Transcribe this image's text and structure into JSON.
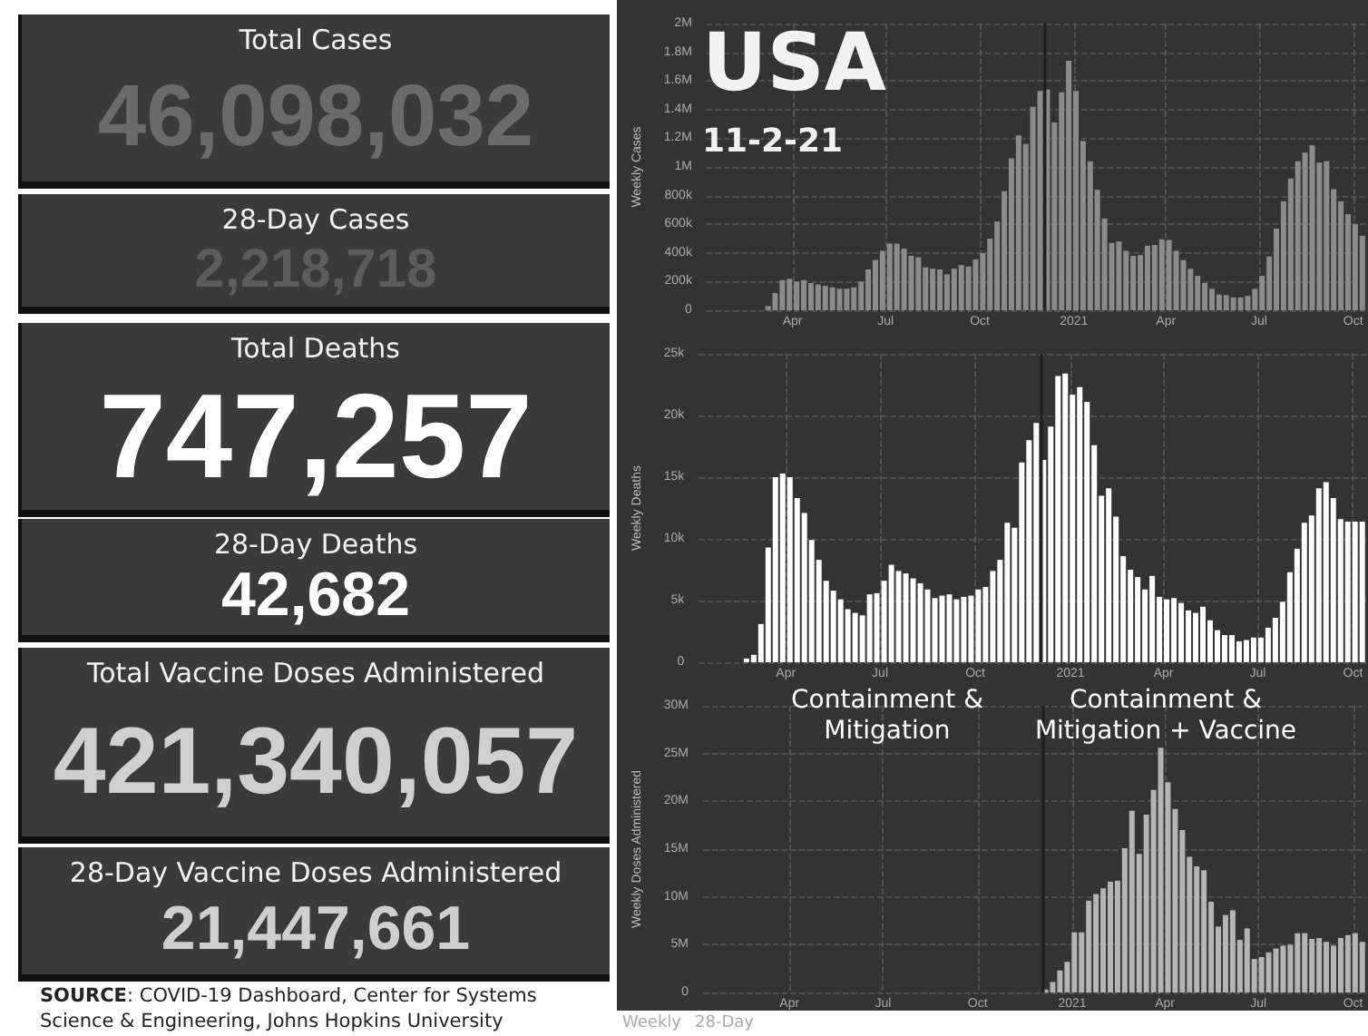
{
  "chart_data": [
    {
      "type": "other",
      "annotations": [
        "Total Cases",
        "46,098,032",
        "28-Day Cases",
        "2,218,718",
        "Total Deaths",
        "747,257",
        "28-Day Deaths",
        "42,682",
        "Total Vaccine Doses Administered",
        "421,340,057",
        "28-Day Vaccine Doses Administered",
        "21,447,661",
        "SOURCE: COVID-19 Dashboard, Center for Systems Science & Engineering, Johns Hopkins University"
      ]
    },
    {
      "type": "bar",
      "title": "USA",
      "subtitle": "11-2-21",
      "ylabel": "Weekly Cases",
      "color": "#8c8c8c",
      "grid": true,
      "ref_lines": [
        {
          "axis": "x",
          "value": "2020-12-03",
          "color": "#1e1e1e"
        }
      ],
      "x": [
        "2020-01-19",
        "2020-01-26",
        "2020-02-02",
        "2020-02-09",
        "2020-02-16",
        "2020-02-23",
        "2020-03-01",
        "2020-03-08",
        "2020-03-15",
        "2020-03-22",
        "2020-03-29",
        "2020-04-05",
        "2020-04-12",
        "2020-04-19",
        "2020-04-26",
        "2020-05-03",
        "2020-05-10",
        "2020-05-17",
        "2020-05-24",
        "2020-05-31",
        "2020-06-07",
        "2020-06-14",
        "2020-06-21",
        "2020-06-28",
        "2020-07-05",
        "2020-07-12",
        "2020-07-19",
        "2020-07-26",
        "2020-08-02",
        "2020-08-09",
        "2020-08-16",
        "2020-08-23",
        "2020-08-30",
        "2020-09-06",
        "2020-09-13",
        "2020-09-20",
        "2020-09-27",
        "2020-10-04",
        "2020-10-11",
        "2020-10-18",
        "2020-10-25",
        "2020-11-01",
        "2020-11-08",
        "2020-11-15",
        "2020-11-22",
        "2020-11-29",
        "2020-12-06",
        "2020-12-13",
        "2020-12-20",
        "2020-12-27",
        "2021-01-03",
        "2021-01-10",
        "2021-01-17",
        "2021-01-24",
        "2021-01-31",
        "2021-02-07",
        "2021-02-14",
        "2021-02-21",
        "2021-02-28",
        "2021-03-07",
        "2021-03-14",
        "2021-03-21",
        "2021-03-28",
        "2021-04-04",
        "2021-04-11",
        "2021-04-18",
        "2021-04-25",
        "2021-05-02",
        "2021-05-09",
        "2021-05-16",
        "2021-05-23",
        "2021-05-30",
        "2021-06-06",
        "2021-06-13",
        "2021-06-20",
        "2021-06-27",
        "2021-07-04",
        "2021-07-11",
        "2021-07-18",
        "2021-07-25",
        "2021-08-01",
        "2021-08-08",
        "2021-08-15",
        "2021-08-22",
        "2021-08-29",
        "2021-09-05",
        "2021-09-12",
        "2021-09-19",
        "2021-09-26",
        "2021-10-03",
        "2021-10-10"
      ],
      "values": [
        0,
        0,
        0,
        0,
        0,
        0,
        0,
        30000,
        120000,
        210000,
        220000,
        200000,
        210000,
        190000,
        180000,
        170000,
        160000,
        150000,
        150000,
        160000,
        200000,
        285000,
        350000,
        415000,
        465000,
        465000,
        430000,
        380000,
        370000,
        300000,
        290000,
        285000,
        250000,
        290000,
        315000,
        305000,
        355000,
        400000,
        500000,
        620000,
        830000,
        1060000,
        1220000,
        1160000,
        1420000,
        1530000,
        1540000,
        1310000,
        1520000,
        1740000,
        1530000,
        1180000,
        1040000,
        840000,
        640000,
        470000,
        480000,
        415000,
        380000,
        385000,
        450000,
        455000,
        495000,
        490000,
        415000,
        350000,
        290000,
        240000,
        190000,
        150000,
        110000,
        105000,
        90000,
        90000,
        100000,
        150000,
        240000,
        375000,
        570000,
        760000,
        920000,
        1040000,
        1100000,
        1150000,
        1030000,
        1040000,
        845000,
        760000,
        670000,
        600000,
        520000
      ],
      "xlim": [
        "2020-01-08",
        "2021-10-14"
      ],
      "xticks": [
        {
          "value": "2020-04-01",
          "label": "Apr"
        },
        {
          "value": "2020-07-01",
          "label": "Jul"
        },
        {
          "value": "2020-10-01",
          "label": "Oct"
        },
        {
          "value": "2021-01-01",
          "label": "2021"
        },
        {
          "value": "2021-04-01",
          "label": "Apr"
        },
        {
          "value": "2021-07-01",
          "label": "Jul"
        },
        {
          "value": "2021-10-01",
          "label": "Oct"
        }
      ],
      "ylim": [
        0,
        2000000
      ],
      "yticks": [
        {
          "value": 0,
          "label": "0"
        },
        {
          "value": 200000,
          "label": "200k"
        },
        {
          "value": 400000,
          "label": "400k"
        },
        {
          "value": 600000,
          "label": "600k"
        },
        {
          "value": 800000,
          "label": "800k"
        },
        {
          "value": 1000000,
          "label": "1M"
        },
        {
          "value": 1200000,
          "label": "1.2M"
        },
        {
          "value": 1400000,
          "label": "1.4M"
        },
        {
          "value": 1600000,
          "label": "1.6M"
        },
        {
          "value": 1800000,
          "label": "1.8M"
        },
        {
          "value": 2000000,
          "label": "2M"
        }
      ]
    },
    {
      "type": "bar",
      "ylabel": "Weekly Deaths",
      "color": "#ffffff",
      "grid": true,
      "x": [
        "2020-01-19",
        "2020-01-26",
        "2020-02-02",
        "2020-02-09",
        "2020-02-16",
        "2020-02-23",
        "2020-03-01",
        "2020-03-08",
        "2020-03-15",
        "2020-03-22",
        "2020-03-29",
        "2020-04-05",
        "2020-04-12",
        "2020-04-19",
        "2020-04-26",
        "2020-05-03",
        "2020-05-10",
        "2020-05-17",
        "2020-05-24",
        "2020-05-31",
        "2020-06-07",
        "2020-06-14",
        "2020-06-21",
        "2020-06-28",
        "2020-07-05",
        "2020-07-12",
        "2020-07-19",
        "2020-07-26",
        "2020-08-02",
        "2020-08-09",
        "2020-08-16",
        "2020-08-23",
        "2020-08-30",
        "2020-09-06",
        "2020-09-13",
        "2020-09-20",
        "2020-09-27",
        "2020-10-04",
        "2020-10-11",
        "2020-10-18",
        "2020-10-25",
        "2020-11-01",
        "2020-11-08",
        "2020-11-15",
        "2020-11-22",
        "2020-11-29",
        "2020-12-06",
        "2020-12-13",
        "2020-12-20",
        "2020-12-27",
        "2021-01-03",
        "2021-01-10",
        "2021-01-17",
        "2021-01-24",
        "2021-01-31",
        "2021-02-07",
        "2021-02-14",
        "2021-02-21",
        "2021-02-28",
        "2021-03-07",
        "2021-03-14",
        "2021-03-21",
        "2021-03-28",
        "2021-04-04",
        "2021-04-11",
        "2021-04-18",
        "2021-04-25",
        "2021-05-02",
        "2021-05-09",
        "2021-05-16",
        "2021-05-23",
        "2021-05-30",
        "2021-06-06",
        "2021-06-13",
        "2021-06-20",
        "2021-06-27",
        "2021-07-04",
        "2021-07-11",
        "2021-07-18",
        "2021-07-25",
        "2021-08-01",
        "2021-08-08",
        "2021-08-15",
        "2021-08-22",
        "2021-08-29",
        "2021-09-05",
        "2021-09-12",
        "2021-09-19",
        "2021-09-26",
        "2021-10-03",
        "2021-10-10"
      ],
      "values": [
        0,
        0,
        0,
        0,
        0,
        300,
        600,
        3100,
        9300,
        15000,
        15300,
        15000,
        13300,
        12100,
        9900,
        8300,
        6600,
        5800,
        5100,
        4300,
        4000,
        3800,
        5500,
        5600,
        6600,
        7900,
        7400,
        7200,
        6800,
        6400,
        5900,
        5200,
        5400,
        5500,
        5100,
        5300,
        5400,
        5900,
        6100,
        7400,
        8300,
        11300,
        10900,
        16200,
        18000,
        19400,
        16400,
        19100,
        23200,
        23400,
        21700,
        22300,
        21100,
        17600,
        13500,
        14100,
        11800,
        8600,
        7500,
        6900,
        5900,
        7000,
        5300,
        5100,
        5200,
        4800,
        4200,
        4000,
        4500,
        3400,
        2600,
        2200,
        2200,
        1700,
        1800,
        2000,
        2000,
        2800,
        3600,
        4900,
        7300,
        9200,
        11300,
        11900,
        14100,
        14600,
        13300,
        11600,
        11400,
        11400,
        11400
      ],
      "xlim": [
        "2020-01-08",
        "2021-10-14"
      ],
      "xticks": [
        {
          "value": "2020-04-01",
          "label": "Apr"
        },
        {
          "value": "2020-07-01",
          "label": "Jul"
        },
        {
          "value": "2020-10-01",
          "label": "Oct"
        },
        {
          "value": "2021-01-01",
          "label": "2021"
        },
        {
          "value": "2021-04-01",
          "label": "Apr"
        },
        {
          "value": "2021-07-01",
          "label": "Jul"
        },
        {
          "value": "2021-10-01",
          "label": "Oct"
        }
      ],
      "ylim": [
        0,
        25000
      ],
      "yticks": [
        {
          "value": 0,
          "label": "0"
        },
        {
          "value": 5000,
          "label": "5k"
        },
        {
          "value": 10000,
          "label": "10k"
        },
        {
          "value": 15000,
          "label": "15k"
        },
        {
          "value": 20000,
          "label": "20k"
        },
        {
          "value": 25000,
          "label": "25k"
        }
      ],
      "ref_lines": [
        {
          "axis": "x",
          "value": "2020-12-03",
          "color": "#1e1e1e"
        }
      ]
    },
    {
      "type": "bar",
      "ylabel": "Weekly Doses Administered",
      "color": "#b4b4b4",
      "grid": true,
      "annotations": [
        "Containment & Mitigation",
        "Containment & Mitigation + Vaccine",
        "Weekly",
        "28-Day"
      ],
      "x": [
        "2020-01-19",
        "2020-01-26",
        "2020-02-02",
        "2020-02-09",
        "2020-02-16",
        "2020-02-23",
        "2020-03-01",
        "2020-03-08",
        "2020-03-15",
        "2020-03-22",
        "2020-03-29",
        "2020-04-05",
        "2020-04-12",
        "2020-04-19",
        "2020-04-26",
        "2020-05-03",
        "2020-05-10",
        "2020-05-17",
        "2020-05-24",
        "2020-05-31",
        "2020-06-07",
        "2020-06-14",
        "2020-06-21",
        "2020-06-28",
        "2020-07-05",
        "2020-07-12",
        "2020-07-19",
        "2020-07-26",
        "2020-08-02",
        "2020-08-09",
        "2020-08-16",
        "2020-08-23",
        "2020-08-30",
        "2020-09-06",
        "2020-09-13",
        "2020-09-20",
        "2020-09-27",
        "2020-10-04",
        "2020-10-11",
        "2020-10-18",
        "2020-10-25",
        "2020-11-01",
        "2020-11-08",
        "2020-11-15",
        "2020-11-22",
        "2020-11-29",
        "2020-12-06",
        "2020-12-13",
        "2020-12-20",
        "2020-12-27",
        "2021-01-03",
        "2021-01-10",
        "2021-01-17",
        "2021-01-24",
        "2021-01-31",
        "2021-02-07",
        "2021-02-14",
        "2021-02-21",
        "2021-02-28",
        "2021-03-07",
        "2021-03-14",
        "2021-03-21",
        "2021-03-28",
        "2021-04-04",
        "2021-04-11",
        "2021-04-18",
        "2021-04-25",
        "2021-05-02",
        "2021-05-09",
        "2021-05-16",
        "2021-05-23",
        "2021-05-30",
        "2021-06-06",
        "2021-06-13",
        "2021-06-20",
        "2021-06-27",
        "2021-07-04",
        "2021-07-11",
        "2021-07-18",
        "2021-07-25",
        "2021-08-01",
        "2021-08-08",
        "2021-08-15",
        "2021-08-22",
        "2021-08-29",
        "2021-09-05",
        "2021-09-12",
        "2021-09-19",
        "2021-09-26",
        "2021-10-03",
        "2021-10-10"
      ],
      "values": [
        0,
        0,
        0,
        0,
        0,
        0,
        0,
        0,
        0,
        0,
        0,
        0,
        0,
        0,
        0,
        0,
        0,
        0,
        0,
        0,
        0,
        0,
        0,
        0,
        0,
        0,
        0,
        0,
        0,
        0,
        0,
        0,
        0,
        0,
        0,
        0,
        0,
        0,
        0,
        0,
        0,
        0,
        0,
        0,
        0,
        0,
        300000,
        1100000,
        2300000,
        3200000,
        6300000,
        6300000,
        9600000,
        10300000,
        10900000,
        11600000,
        11700000,
        15100000,
        19000000,
        14500000,
        18600000,
        21200000,
        25600000,
        22000000,
        19200000,
        17000000,
        14200000,
        13200000,
        12800000,
        9500000,
        6900000,
        8100000,
        8600000,
        5500000,
        6700000,
        3500000,
        3700000,
        4200000,
        4600000,
        4900000,
        5000000,
        6200000,
        6200000,
        5600000,
        5700000,
        5300000,
        4900000,
        5700000,
        6000000,
        6200000,
        5300000
      ],
      "xlim": [
        "2020-01-08",
        "2021-10-14"
      ],
      "xticks": [
        {
          "value": "2020-04-01",
          "label": "Apr"
        },
        {
          "value": "2020-07-01",
          "label": "Jul"
        },
        {
          "value": "2020-10-01",
          "label": "Oct"
        },
        {
          "value": "2021-01-01",
          "label": "2021"
        },
        {
          "value": "2021-04-01",
          "label": "Apr"
        },
        {
          "value": "2021-07-01",
          "label": "Jul"
        },
        {
          "value": "2021-10-01",
          "label": "Oct"
        }
      ],
      "ylim": [
        0,
        30000000
      ],
      "yticks": [
        {
          "value": 0,
          "label": "0"
        },
        {
          "value": 5000000,
          "label": "5M"
        },
        {
          "value": 10000000,
          "label": "10M"
        },
        {
          "value": 15000000,
          "label": "15M"
        },
        {
          "value": 20000000,
          "label": "20M"
        },
        {
          "value": 25000000,
          "label": "25M"
        },
        {
          "value": 30000000,
          "label": "30M"
        }
      ],
      "ref_lines": [
        {
          "axis": "x",
          "value": "2020-12-03",
          "color": "#1e1e1e"
        }
      ]
    }
  ]
}
